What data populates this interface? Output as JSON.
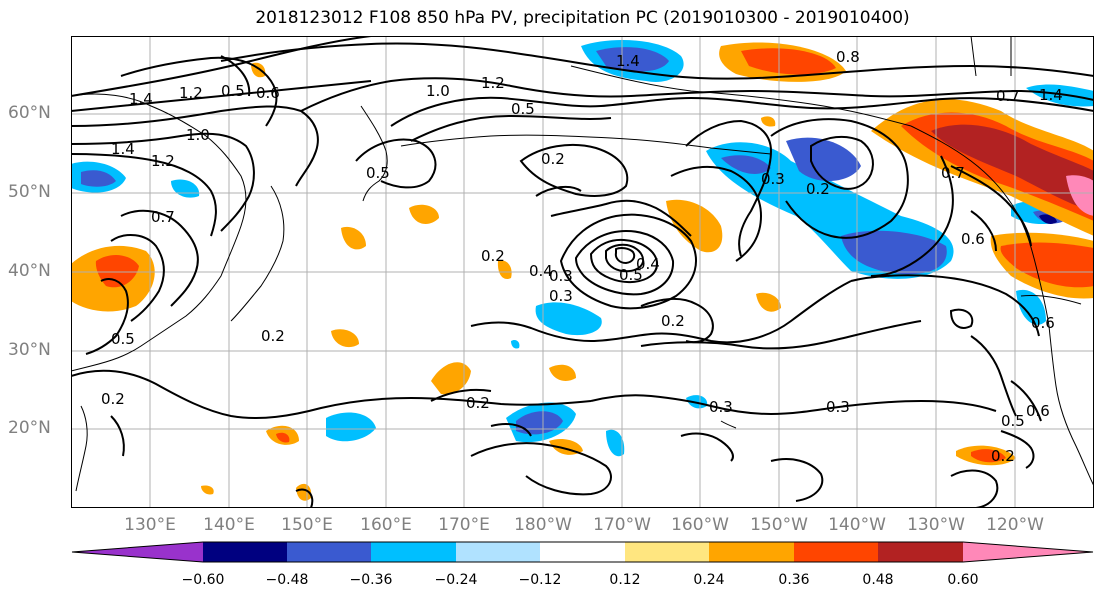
{
  "title": "2018123012 F108 850 hPa PV, precipitation PC (2019010300 - 2019010400)",
  "lat_labels": [
    "60°N",
    "50°N",
    "40°N",
    "30°N",
    "20°N"
  ],
  "lon_labels": [
    "130°E",
    "140°E",
    "150°E",
    "160°E",
    "170°E",
    "180°W",
    "170°W",
    "160°W",
    "150°W",
    "140°W",
    "130°W",
    "120°W"
  ],
  "contour_labels": [
    "1.4",
    "1.2",
    "1.0",
    "0.6",
    "0.5",
    "1.0",
    "1.2",
    "1.4",
    "0.8",
    "0.7",
    "1.4",
    "0.5",
    "0.2",
    "0.3",
    "0.2",
    "0.6",
    "0.7",
    "1.4",
    "1.2",
    "0.7",
    "0.5",
    "0.2",
    "0.3",
    "0.4",
    "0.5",
    "0.2",
    "0.2",
    "0.3",
    "0.3",
    "0.5",
    "0.6",
    "0.6",
    "0.2",
    "0.2",
    "0.5",
    "0.2",
    "0.3",
    "0.4"
  ],
  "colorbar": {
    "tick_labels": [
      "−0.60",
      "−0.48",
      "−0.36",
      "−0.24",
      "−0.12",
      "0.12",
      "0.24",
      "0.36",
      "0.48",
      "0.60"
    ],
    "colors": [
      "#9932cc",
      "#000080",
      "#3a5ad0",
      "#00bfff",
      "#b0e2ff",
      "#ffffff",
      "#ffe680",
      "#ffa500",
      "#ff4500",
      "#b22222",
      "#ff88b8"
    ]
  }
}
